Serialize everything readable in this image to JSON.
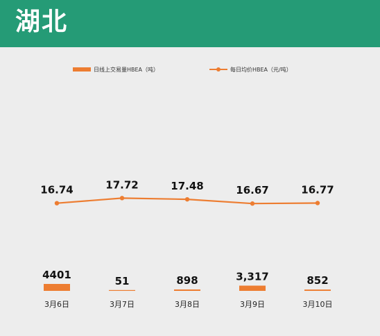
{
  "header": {
    "title": "湖北"
  },
  "colors": {
    "header_bg": "#259b76",
    "series": "#ed7d31",
    "plot_bg": "#ededed"
  },
  "chart_data": {
    "type": "bar",
    "categories": [
      "3月6日",
      "3月7日",
      "3月8日",
      "3月9日",
      "3月10日"
    ],
    "series": [
      {
        "name": "日线上交易量HBEA（吨）",
        "type": "bar",
        "values": [
          4401,
          51,
          898,
          3317,
          852
        ],
        "labels": [
          "4401",
          "51",
          "898",
          "3,317",
          "852"
        ]
      },
      {
        "name": "每日均价HBEA（元/吨）",
        "type": "line",
        "values": [
          16.74,
          17.72,
          17.48,
          16.67,
          16.77
        ],
        "labels": [
          "16.74",
          "17.72",
          "17.48",
          "16.67",
          "16.77"
        ]
      }
    ],
    "legend": "top",
    "grid": false
  }
}
